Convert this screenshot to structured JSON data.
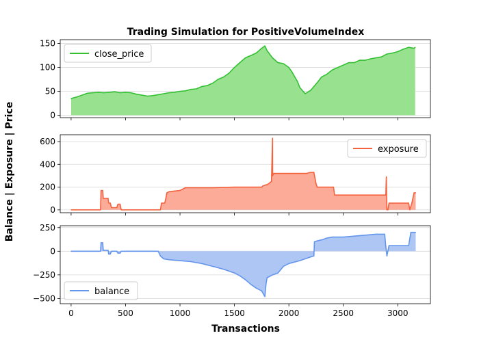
{
  "chart_data": {
    "type": "area",
    "title": "Trading Simulation for PositiveVolumeIndex",
    "xlabel": "Transactions",
    "ylabel": "Balance | Exposure | Price",
    "xlim": [
      -100,
      3300
    ],
    "xticks": [
      0,
      500,
      1000,
      1500,
      2000,
      2500,
      3000
    ],
    "panels": [
      {
        "name": "close_price",
        "color": "#33c033",
        "fill": "#98e28f",
        "ylim": [
          -5,
          158
        ],
        "yticks": [
          0,
          50,
          100,
          150
        ],
        "legend": "top-left",
        "x": [
          0,
          50,
          100,
          150,
          200,
          250,
          300,
          350,
          400,
          450,
          500,
          550,
          600,
          650,
          700,
          750,
          800,
          850,
          900,
          950,
          1000,
          1050,
          1100,
          1150,
          1200,
          1250,
          1300,
          1350,
          1400,
          1450,
          1500,
          1550,
          1600,
          1650,
          1700,
          1750,
          1780,
          1800,
          1850,
          1900,
          1950,
          2000,
          2030,
          2050,
          2080,
          2100,
          2150,
          2200,
          2230,
          2260,
          2300,
          2350,
          2400,
          2450,
          2500,
          2550,
          2600,
          2650,
          2700,
          2750,
          2800,
          2850,
          2900,
          2950,
          3000,
          3050,
          3100,
          3150,
          3160
        ],
        "values": [
          35,
          38,
          42,
          46,
          47,
          48,
          47,
          48,
          49,
          47,
          48,
          47,
          44,
          42,
          40,
          41,
          43,
          45,
          47,
          48,
          50,
          51,
          54,
          55,
          60,
          62,
          67,
          75,
          80,
          88,
          100,
          110,
          120,
          125,
          130,
          140,
          145,
          135,
          120,
          110,
          108,
          100,
          90,
          82,
          70,
          58,
          45,
          52,
          60,
          68,
          80,
          86,
          95,
          100,
          105,
          110,
          110,
          115,
          115,
          118,
          120,
          122,
          128,
          130,
          133,
          138,
          142,
          140,
          142
        ]
      },
      {
        "name": "exposure",
        "color": "#f4623e",
        "fill": "#fbab98",
        "ylim": [
          -25,
          660
        ],
        "yticks": [
          0,
          200,
          400,
          600
        ],
        "legend": "top-right",
        "x": [
          0,
          270,
          275,
          290,
          295,
          340,
          345,
          360,
          370,
          420,
          430,
          450,
          460,
          540,
          545,
          820,
          830,
          860,
          870,
          880,
          900,
          1000,
          1020,
          1040,
          1050,
          1250,
          1300,
          1500,
          1700,
          1750,
          1760,
          1790,
          1800,
          1840,
          1850,
          1850.5,
          1860,
          1870,
          1880,
          1900,
          2150,
          2160,
          2200,
          2230,
          2240,
          2250,
          2260,
          2400,
          2410,
          2420,
          2830,
          2835,
          2890,
          2895,
          2900,
          2910,
          2920,
          2930,
          3100,
          3110,
          3130,
          3150,
          3165
        ],
        "values": [
          0,
          0,
          170,
          170,
          100,
          100,
          60,
          60,
          20,
          20,
          50,
          50,
          0,
          0,
          0,
          0,
          60,
          60,
          100,
          150,
          160,
          170,
          180,
          190,
          195,
          195,
          195,
          200,
          200,
          200,
          210,
          220,
          220,
          250,
          630,
          300,
          320,
          320,
          320,
          320,
          320,
          320,
          330,
          330,
          280,
          230,
          200,
          200,
          200,
          130,
          130,
          130,
          130,
          290,
          0,
          0,
          60,
          60,
          60,
          0,
          60,
          150,
          150
        ]
      },
      {
        "name": "balance",
        "color": "#6495ed",
        "fill": "#adc6f4",
        "ylim": [
          -555,
          270
        ],
        "yticks": [
          -500,
          -250,
          0,
          250
        ],
        "legend": "bottom-left",
        "x": [
          0,
          270,
          275,
          290,
          295,
          340,
          345,
          360,
          370,
          420,
          430,
          450,
          460,
          540,
          545,
          800,
          820,
          830,
          850,
          900,
          1000,
          1100,
          1200,
          1300,
          1400,
          1500,
          1550,
          1600,
          1650,
          1700,
          1750,
          1780,
          1790,
          1800,
          1850,
          1900,
          1950,
          2000,
          2100,
          2150,
          2200,
          2230,
          2235,
          2260,
          2300,
          2350,
          2400,
          2500,
          2600,
          2700,
          2800,
          2830,
          2860,
          2880,
          2890,
          2900,
          2920,
          2950,
          3000,
          3050,
          3100,
          3120,
          3150,
          3165
        ],
        "values": [
          0,
          0,
          90,
          90,
          10,
          10,
          -30,
          -30,
          0,
          0,
          -20,
          -20,
          0,
          0,
          0,
          0,
          -50,
          -60,
          -80,
          -90,
          -100,
          -110,
          -130,
          -160,
          -190,
          -230,
          -260,
          -300,
          -350,
          -390,
          -420,
          -480,
          -350,
          -280,
          -250,
          -230,
          -160,
          -130,
          -100,
          -80,
          -60,
          -50,
          100,
          110,
          120,
          140,
          150,
          150,
          160,
          170,
          180,
          180,
          180,
          180,
          50,
          -50,
          60,
          60,
          60,
          60,
          60,
          200,
          200,
          200
        ]
      }
    ]
  }
}
